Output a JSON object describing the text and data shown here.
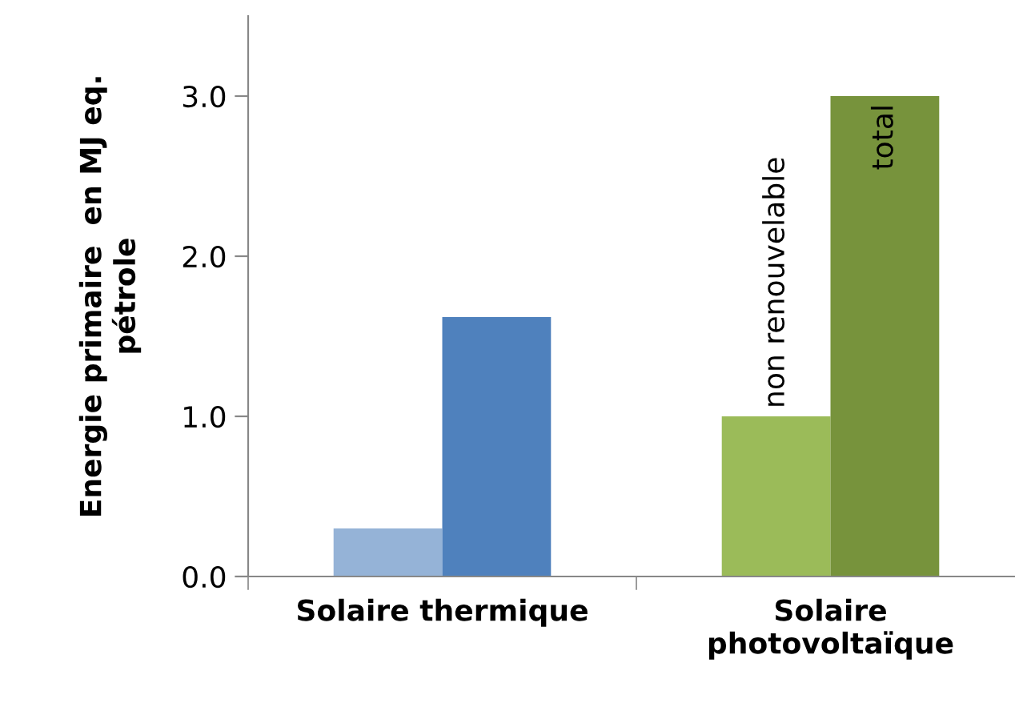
{
  "chart_data": {
    "type": "bar",
    "ylabel": "Energie primaire  en MJ eq.\npétrole",
    "categories": [
      "Solaire thermique",
      "Solaire\nphotovoltaïque"
    ],
    "series": [
      {
        "name": "non renouvelable",
        "colors": [
          "#95b3d7",
          "#9bbb59"
        ],
        "values": [
          0.3,
          1.0
        ]
      },
      {
        "name": "total",
        "colors": [
          "#4f81bd",
          "#77933c"
        ],
        "values": [
          1.62,
          3.0
        ]
      }
    ],
    "ylim": [
      0,
      3.5
    ],
    "yticks": [
      {
        "value": 0,
        "label": "0.0"
      },
      {
        "value": 1,
        "label": "1.0"
      },
      {
        "value": 2,
        "label": "2.0"
      },
      {
        "value": 3,
        "label": "3.0"
      }
    ],
    "grid": false,
    "legend": false
  }
}
